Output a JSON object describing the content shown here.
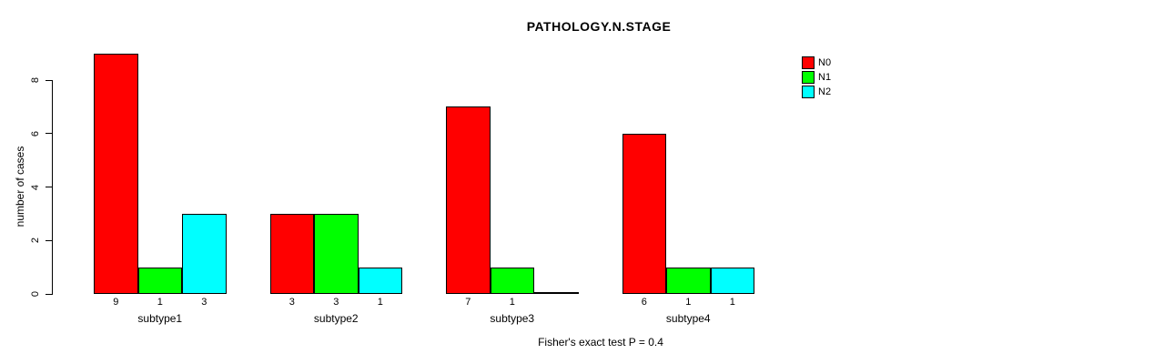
{
  "chart_data": {
    "type": "bar",
    "title": "PATHOLOGY.N.STAGE",
    "ylabel": "number of cases",
    "caption": "Fisher's exact test P = 0.4",
    "categories": [
      "subtype1",
      "subtype2",
      "subtype3",
      "subtype4"
    ],
    "series": [
      {
        "name": "N0",
        "color": "#ff0000",
        "values": [
          9,
          3,
          7,
          6
        ]
      },
      {
        "name": "N1",
        "color": "#00ff00",
        "values": [
          1,
          3,
          1,
          1
        ]
      },
      {
        "name": "N2",
        "color": "#00ffff",
        "values": [
          3,
          1,
          0,
          1
        ]
      }
    ],
    "bar_value_labels": [
      [
        "9",
        "1",
        "3"
      ],
      [
        "3",
        "3",
        "1"
      ],
      [
        "7",
        "1",
        ""
      ],
      [
        "6",
        "1",
        "1"
      ]
    ],
    "yticks": [
      "0",
      "2",
      "4",
      "6",
      "8"
    ],
    "ylim": [
      0,
      9.4
    ],
    "grid": false,
    "legend_position": "top-right",
    "colors": {
      "background": "#ffffff",
      "axis": "#000000",
      "text": "#000000"
    }
  }
}
